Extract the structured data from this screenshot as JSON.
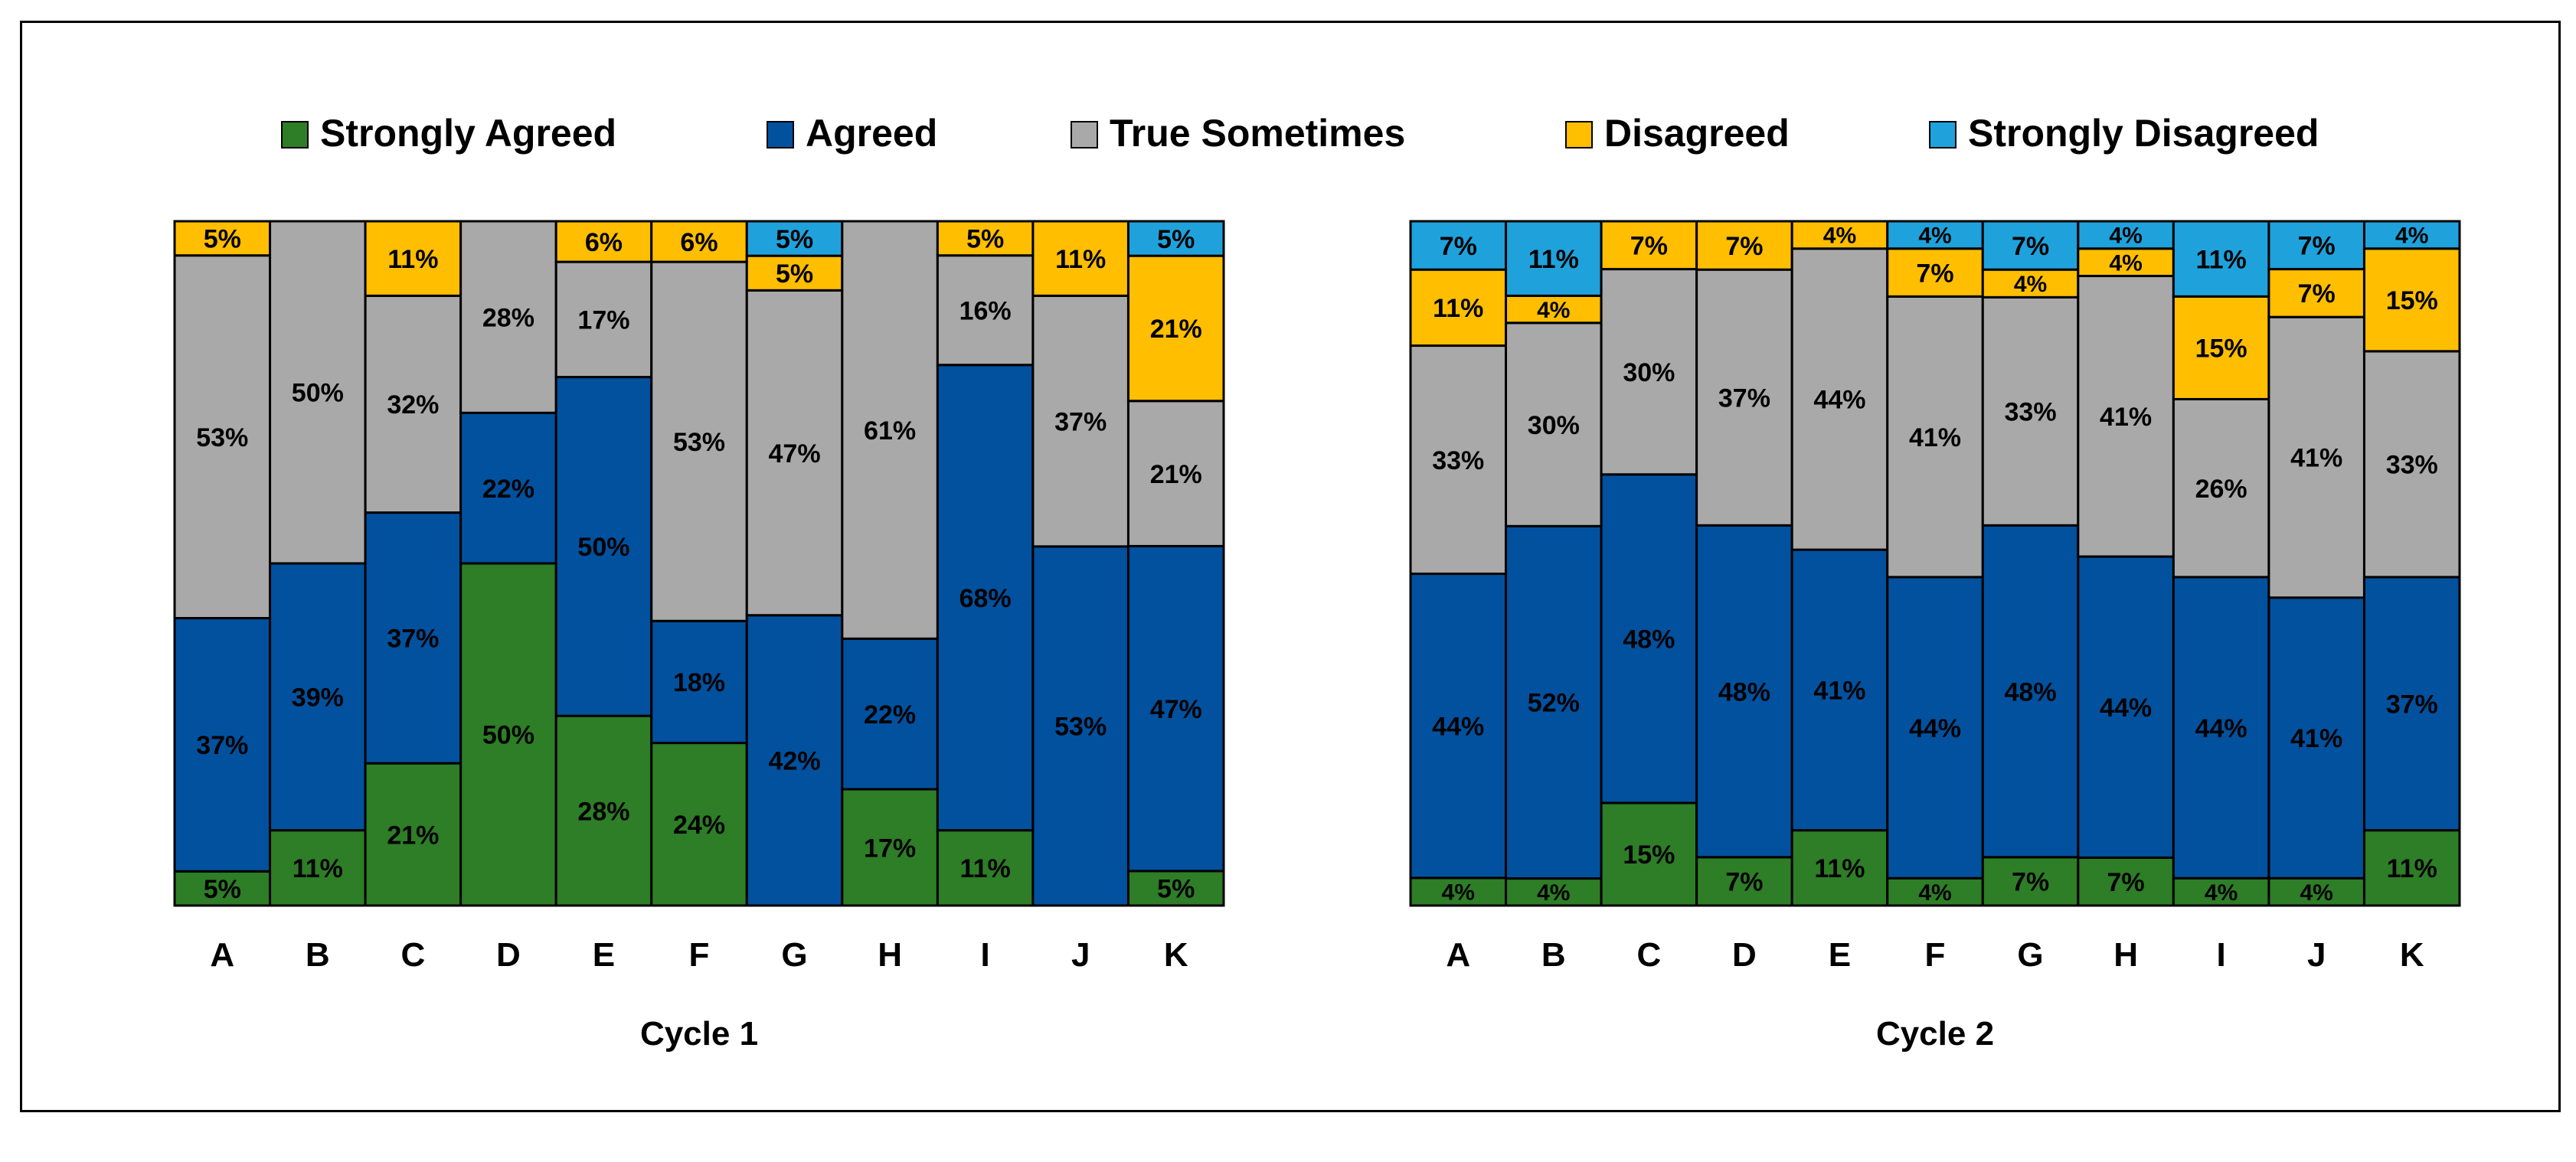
{
  "chart_data": [
    {
      "type": "bar",
      "stacked": true,
      "normalized": true,
      "title": "Cycle 1",
      "categories": [
        "A",
        "B",
        "C",
        "D",
        "E",
        "F",
        "G",
        "H",
        "I",
        "J",
        "K"
      ],
      "series": [
        {
          "name": "Strongly Agreed",
          "values": [
            5,
            11,
            21,
            50,
            28,
            24,
            0,
            17,
            11,
            0,
            5
          ]
        },
        {
          "name": "Agreed",
          "values": [
            37,
            39,
            37,
            22,
            50,
            18,
            42,
            22,
            68,
            53,
            47
          ]
        },
        {
          "name": "True Sometimes",
          "values": [
            53,
            50,
            32,
            28,
            17,
            53,
            47,
            61,
            16,
            37,
            21
          ]
        },
        {
          "name": "Disagreed",
          "values": [
            5,
            0,
            11,
            0,
            6,
            6,
            5,
            0,
            5,
            11,
            21
          ]
        },
        {
          "name": "Strongly Disagreed",
          "values": [
            0,
            0,
            0,
            0,
            0,
            0,
            5,
            0,
            0,
            0,
            5
          ]
        }
      ],
      "value_suffix": "%",
      "ylim": [
        0,
        100
      ]
    },
    {
      "type": "bar",
      "stacked": true,
      "normalized": true,
      "title": "Cycle 2",
      "categories": [
        "A",
        "B",
        "C",
        "D",
        "E",
        "F",
        "G",
        "H",
        "I",
        "J",
        "K"
      ],
      "series": [
        {
          "name": "Strongly Agreed",
          "values": [
            4,
            4,
            15,
            7,
            11,
            4,
            7,
            7,
            4,
            4,
            11
          ]
        },
        {
          "name": "Agreed",
          "values": [
            44,
            52,
            48,
            48,
            41,
            44,
            48,
            44,
            44,
            41,
            37
          ]
        },
        {
          "name": "True Sometimes",
          "values": [
            33,
            30,
            30,
            37,
            44,
            41,
            33,
            41,
            26,
            41,
            33
          ]
        },
        {
          "name": "Disagreed",
          "values": [
            11,
            4,
            7,
            7,
            4,
            7,
            4,
            4,
            15,
            7,
            15
          ]
        },
        {
          "name": "Strongly Disagreed",
          "values": [
            7,
            11,
            0,
            0,
            0,
            4,
            7,
            4,
            11,
            7,
            4
          ]
        }
      ],
      "value_suffix": "%",
      "ylim": [
        0,
        100
      ]
    }
  ],
  "legend": {
    "placement": "top-center",
    "items": [
      {
        "label": "Strongly Agreed",
        "color": "#2E7D27"
      },
      {
        "label": "Agreed",
        "color": "#02519E"
      },
      {
        "label": "True Sometimes",
        "color": "#A9A9A9"
      },
      {
        "label": "Disagreed",
        "color": "#FFBE00"
      },
      {
        "label": "Strongly Disagreed",
        "color": "#1FA2DC"
      }
    ]
  }
}
